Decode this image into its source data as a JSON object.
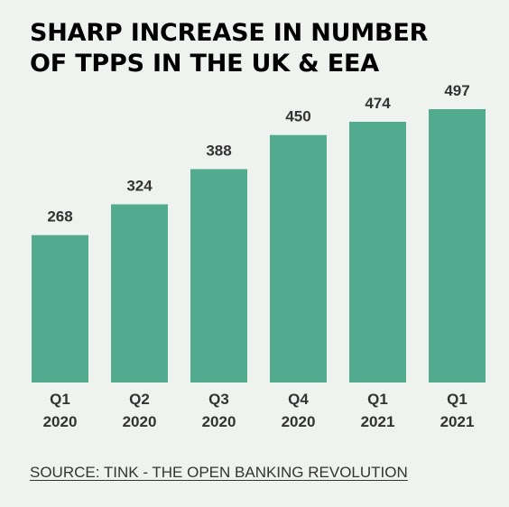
{
  "chart_data": {
    "type": "bar",
    "title_lines": [
      "SHARP INCREASE IN NUMBER",
      "OF TPPS IN THE UK & EEA"
    ],
    "categories": [
      {
        "line1": "Q1",
        "line2": "2020"
      },
      {
        "line1": "Q2",
        "line2": "2020"
      },
      {
        "line1": "Q3",
        "line2": "2020"
      },
      {
        "line1": "Q4",
        "line2": "2020"
      },
      {
        "line1": "Q1",
        "line2": "2021"
      },
      {
        "line1": "Q1",
        "line2": "2021"
      }
    ],
    "values": [
      268,
      324,
      388,
      450,
      474,
      497
    ],
    "data_labels": [
      "268",
      "324",
      "388",
      "450",
      "474",
      "497"
    ],
    "xlabel": "",
    "ylabel": "",
    "ylim": [
      0,
      510
    ],
    "grid": false,
    "legend": "none",
    "bar_color": "#52aa8f",
    "source": "SOURCE: TINK - THE OPEN BANKING REVOLUTION"
  }
}
